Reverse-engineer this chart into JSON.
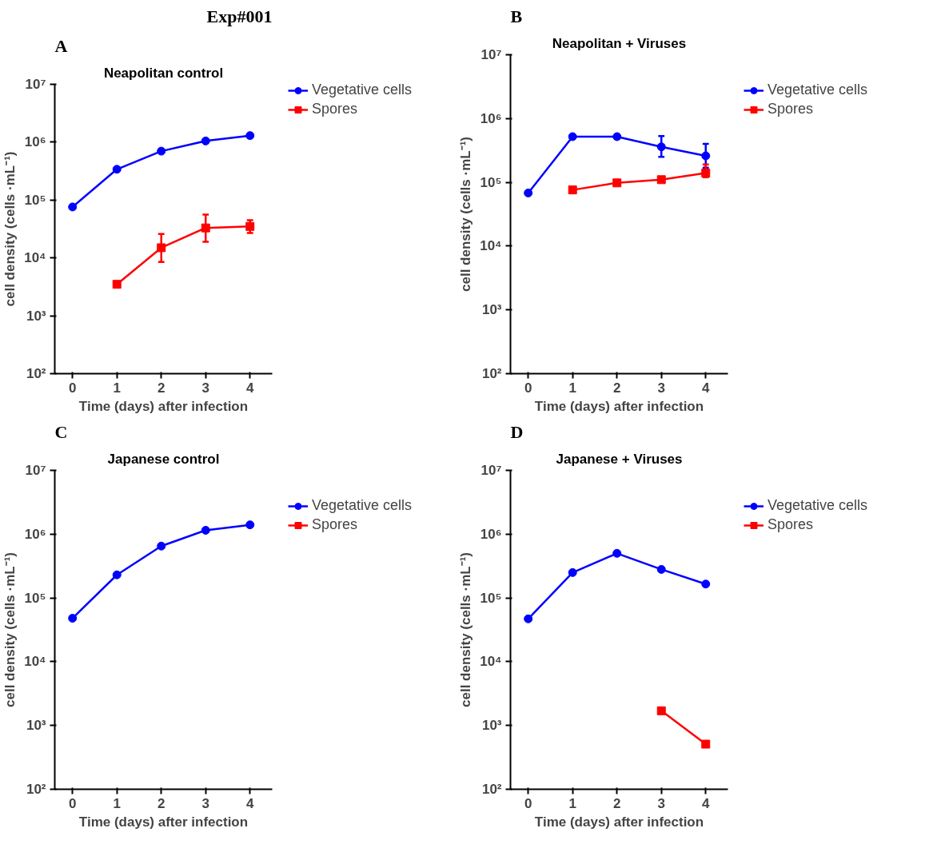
{
  "chart_data": [
    {
      "type": "line",
      "title": "Neapolitan control",
      "xlabel": "Time (days) after infection",
      "ylabel": "cell density (cells ·mL⁻¹)",
      "annotations": [
        "A",
        "Exp#001"
      ],
      "x": [
        0,
        1,
        2,
        3,
        4
      ],
      "xlim": [
        -0.4,
        4.5
      ],
      "xticks": [
        0,
        1,
        2,
        3,
        4
      ],
      "ylim": [
        100,
        10000000
      ],
      "yticks": [
        {
          "value": 100,
          "label": "10²"
        },
        {
          "value": 1000,
          "label": "10³"
        },
        {
          "value": 10000,
          "label": "10⁴"
        },
        {
          "value": 100000,
          "label": "10⁵"
        },
        {
          "value": 1000000,
          "label": "10⁶"
        },
        {
          "value": 10000000,
          "label": "10⁷"
        }
      ],
      "log": "y",
      "grid": false,
      "legend": "right",
      "line_style": "solid",
      "series": [
        {
          "name": "Vegetative cells",
          "color": "#0000ff",
          "marker": "circle",
          "values": [
            76000,
            340000,
            700000,
            1050000,
            1300000
          ]
        },
        {
          "name": "Spores",
          "color": "#ff0000",
          "marker": "square",
          "values": [
            null,
            3500,
            15000,
            33000,
            35000
          ],
          "errors": [
            null,
            null,
            [
              8500,
              26000
            ],
            [
              19000,
              56000
            ],
            [
              27000,
              45000
            ]
          ]
        }
      ]
    },
    {
      "type": "line",
      "title": "Neapolitan + Viruses",
      "xlabel": "Time (days) after infection",
      "ylabel": "cell density (cells ·mL⁻¹)",
      "annotations": [
        "B"
      ],
      "x": [
        0,
        1,
        2,
        3,
        4
      ],
      "xlim": [
        -0.4,
        4.5
      ],
      "xticks": [
        0,
        1,
        2,
        3,
        4
      ],
      "ylim": [
        100,
        10000000
      ],
      "yticks": [
        {
          "value": 100,
          "label": "10²"
        },
        {
          "value": 1000,
          "label": "10³"
        },
        {
          "value": 10000,
          "label": "10⁴"
        },
        {
          "value": 100000,
          "label": "10⁵"
        },
        {
          "value": 1000000,
          "label": "10⁶"
        },
        {
          "value": 10000000,
          "label": "10⁷"
        }
      ],
      "log": "y",
      "grid": false,
      "legend": "right",
      "line_style": "solid",
      "series": [
        {
          "name": "Vegetative cells",
          "color": "#0000ff",
          "marker": "circle",
          "values": [
            68000,
            520000,
            520000,
            360000,
            260000
          ],
          "errors": [
            null,
            null,
            null,
            [
              250000,
              530000
            ],
            [
              170000,
              400000
            ]
          ]
        },
        {
          "name": "Spores",
          "color": "#ff0000",
          "marker": "square",
          "values": [
            null,
            76000,
            98000,
            110000,
            140000
          ],
          "errors": [
            null,
            null,
            null,
            null,
            [
              120000,
              190000
            ]
          ]
        }
      ]
    },
    {
      "type": "line",
      "title": "Japanese control",
      "xlabel": "Time (days) after infection",
      "ylabel": "cell density (cells ·mL⁻¹)",
      "annotations": [
        "C"
      ],
      "x": [
        0,
        1,
        2,
        3,
        4
      ],
      "xlim": [
        -0.4,
        4.5
      ],
      "xticks": [
        0,
        1,
        2,
        3,
        4
      ],
      "ylim": [
        100,
        10000000
      ],
      "yticks": [
        {
          "value": 100,
          "label": "10²"
        },
        {
          "value": 1000,
          "label": "10³"
        },
        {
          "value": 10000,
          "label": "10⁴"
        },
        {
          "value": 100000,
          "label": "10⁵"
        },
        {
          "value": 1000000,
          "label": "10⁶"
        },
        {
          "value": 10000000,
          "label": "10⁷"
        }
      ],
      "log": "y",
      "grid": false,
      "legend": "right",
      "line_style": "solid",
      "series": [
        {
          "name": "Vegetative cells",
          "color": "#0000ff",
          "marker": "circle",
          "values": [
            48000,
            230000,
            650000,
            1150000,
            1400000
          ]
        },
        {
          "name": "Spores",
          "color": "#ff0000",
          "marker": "square",
          "values": [
            null,
            null,
            null,
            null,
            null
          ]
        }
      ]
    },
    {
      "type": "line",
      "title": "Japanese + Viruses",
      "xlabel": "Time (days) after infection",
      "ylabel": "cell density (cells ·mL⁻¹)",
      "annotations": [
        "D"
      ],
      "x": [
        0,
        1,
        2,
        3,
        4
      ],
      "xlim": [
        -0.4,
        4.5
      ],
      "xticks": [
        0,
        1,
        2,
        3,
        4
      ],
      "ylim": [
        100,
        10000000
      ],
      "yticks": [
        {
          "value": 100,
          "label": "10²"
        },
        {
          "value": 1000,
          "label": "10³"
        },
        {
          "value": 10000,
          "label": "10⁴"
        },
        {
          "value": 100000,
          "label": "10⁵"
        },
        {
          "value": 1000000,
          "label": "10⁶"
        },
        {
          "value": 10000000,
          "label": "10⁷"
        }
      ],
      "log": "y",
      "grid": false,
      "legend": "right",
      "line_style": "solid",
      "series": [
        {
          "name": "Vegetative cells",
          "color": "#0000ff",
          "marker": "circle",
          "values": [
            47000,
            250000,
            500000,
            280000,
            165000
          ]
        },
        {
          "name": "Spores",
          "color": "#ff0000",
          "marker": "square",
          "values": [
            null,
            null,
            null,
            1700,
            510
          ]
        }
      ]
    }
  ]
}
